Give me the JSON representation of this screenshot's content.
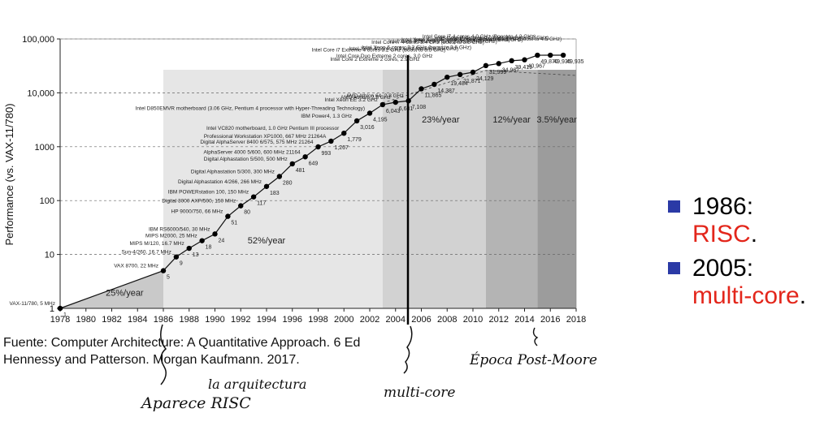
{
  "chart_data": {
    "type": "line",
    "ylabel": "Performance (vs. VAX-11/780)",
    "y_ticks": [
      "1",
      "10",
      "100",
      "1000",
      "10,000",
      "100,000"
    ],
    "x_ticks": [
      "1978",
      "1980",
      "1982",
      "1984",
      "1986",
      "1988",
      "1990",
      "1992",
      "1994",
      "1996",
      "1998",
      "2000",
      "2002",
      "2004",
      "2006",
      "2008",
      "2010",
      "2012",
      "2014",
      "2016",
      "2018"
    ],
    "xlim": [
      1978,
      2018
    ],
    "ylim": [
      1,
      100000
    ],
    "y_scale": "log",
    "regions": [
      {
        "label": "25%/year",
        "from": 1978,
        "to": 1986,
        "color": "#c9c9c9"
      },
      {
        "label": "52%/year",
        "from": 1986,
        "to": 2003,
        "color": "#e6e6e6"
      },
      {
        "label": "23%/year",
        "from": 2003,
        "to": 2011,
        "color": "#d2d2d2"
      },
      {
        "label": "12%/year",
        "from": 2011,
        "to": 2015,
        "color": "#b4b4b4"
      },
      {
        "label": "3.5%/year",
        "from": 2015,
        "to": 2018,
        "color": "#9c9c9c"
      }
    ],
    "points": [
      {
        "x": 1978,
        "y": 1,
        "label": "VAX-11/780, 5 MHz"
      },
      {
        "x": 1986,
        "y": 5,
        "label": "VAX 8700, 22 MHz"
      },
      {
        "x": 1987,
        "y": 9,
        "label": "Sun-4/260, 16.7 MHz"
      },
      {
        "x": 1988,
        "y": 13,
        "label": "MIPS M/120, 16.7 MHz"
      },
      {
        "x": 1989,
        "y": 18,
        "label": "MIPS M2000, 25 MHz"
      },
      {
        "x": 1990,
        "y": 24,
        "label": "IBM RS6000/540, 30 MHz"
      },
      {
        "x": 1991,
        "y": 51,
        "label": "HP 9000/750, 66 MHz"
      },
      {
        "x": 1992,
        "y": 80,
        "label": "Digital 3000 AXP/500, 150 MHz"
      },
      {
        "x": 1993,
        "y": 117,
        "label": "IBM POWERstation 100, 150 MHz"
      },
      {
        "x": 1994,
        "y": 183,
        "label": "Digital Alphastation 4/266, 266 MHz"
      },
      {
        "x": 1995,
        "y": 280,
        "label": "Digital Alphastation 5/300, 300 MHz"
      },
      {
        "x": 1996,
        "y": 481,
        "label": "Digital Alphastation 5/500, 500 MHz"
      },
      {
        "x": 1997,
        "y": 649,
        "label": "AlphaServer 4000 5/600, 600 MHz 21164"
      },
      {
        "x": 1998,
        "y": 993,
        "label": "Digital AlphaServer 8400 6/575, 575 MHz 21264"
      },
      {
        "x": 1999,
        "y": 1267,
        "label": "Professional Workstation XP1000, 667 MHz 21264A"
      },
      {
        "x": 2000,
        "y": 1779,
        "label": "Intel VC820 motherboard, 1.0 GHz Pentium III processor"
      },
      {
        "x": 2001,
        "y": 3016,
        "label": "IBM Power4, 1.3 GHz"
      },
      {
        "x": 2002,
        "y": 4195,
        "label": "Intel D850EMVR motherboard (3.06 GHz, Pentium 4 processor with Hyper-Threading Technology)"
      },
      {
        "x": 2003,
        "y": 6043,
        "label": "Intel Xeon EE 3.2 GHz"
      },
      {
        "x": 2004,
        "y": 6681,
        "label": "AMD Athlon, 2.6 GHz"
      },
      {
        "x": 2005,
        "y": 7108,
        "label": "AMD Athlon 64, 2.8 GHz"
      },
      {
        "x": 2006,
        "y": 11865,
        "label": "Intel Core 2 Extreme 2 cores, 2.9 GHz"
      },
      {
        "x": 2007,
        "y": 14387,
        "label": "Intel Core Duo Extreme 2 cores, 3.0 GHz"
      },
      {
        "x": 2008,
        "y": 19484,
        "label": "Intel Core i7 Extreme 4 cores 3.2 GHz (boost to 3.5 GHz)"
      },
      {
        "x": 2009,
        "y": 21871,
        "label": "Intel Xeon 4 cores, 3.3 GHz (boost to 3.6 GHz)"
      },
      {
        "x": 2010,
        "y": 24129,
        "label": "Intel Xeon 6 cores, 3.3 GHz (boost to 3.6 GHz)"
      },
      {
        "x": 2011,
        "y": 31999,
        "label": "Intel Core i7 4 cores 3.4 GHz (boost to 3.8 GHz)"
      },
      {
        "x": 2012,
        "y": 34967,
        "label": "Intel Xeon 4 cores 3.6 GHz (Boost to 4.0 GHz)"
      },
      {
        "x": 2013,
        "y": 39419,
        "label": "Intel Xeon 4 cores 3.6 GHz (Boost to 4.0 GHz)"
      },
      {
        "x": 2014,
        "y": 40967,
        "label": "Intel Xeon 4 cores 3.7 GHz (Boost to 4.1 GHz)"
      },
      {
        "x": 2015,
        "y": 49870,
        "label": "Intel Core i7 4 cores 4.0 GHz (Boost to 4.2 GHz)"
      },
      {
        "x": 2016,
        "y": 49935,
        "label": "Intel Core i7 4 cores 4.0 GHz (Boost to 4.2 GHz)"
      },
      {
        "x": 2017,
        "y": 49935,
        "label": "Intel Core i7 4 cores 4.2 GHz (Boost to 4.5 GHz)"
      }
    ]
  },
  "source": {
    "line1": "Fuente: Computer Architecture: A Quantitative Approach. 6 Ed",
    "line2": "Hennessy and Patterson. Morgan Kaufmann. 2017."
  },
  "bullets": [
    {
      "year": "1986:",
      "text": "RISC",
      "suffix": "."
    },
    {
      "year": "2005:",
      "text": "multi-core",
      "suffix": "."
    }
  ],
  "handwriting": {
    "note_risc_top": "la arquitectura",
    "note_risc_bottom": "Aparece RISC",
    "note_multicore": "multi-core",
    "note_postmoore": "Época Post-Moore"
  },
  "colors": {
    "accent": "#e3261b",
    "bullet": "#2b3aa6"
  }
}
